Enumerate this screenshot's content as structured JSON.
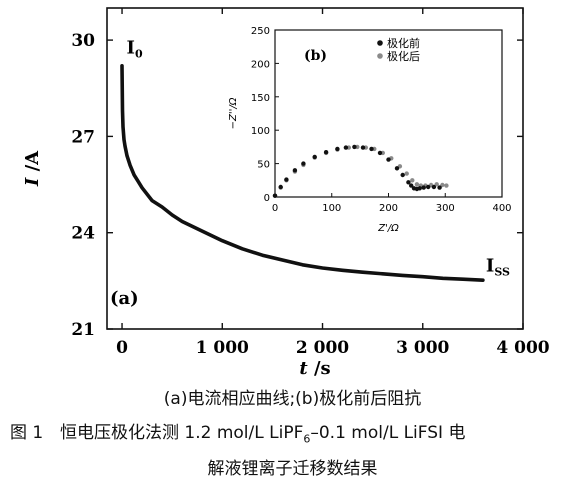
{
  "caption": {
    "subfig": "(a)电流相应曲线;(b)极化前后阻抗",
    "fig_num": "图 1",
    "line1_pre": "恒电压极化法测 1.2 mol/L LiPF",
    "line1_sub": "6",
    "line1_post": "–0.1 mol/L LiFSI 电",
    "line2": "解液锂离子迁移数结果"
  },
  "chart_data": [
    {
      "type": "line",
      "panel_label": "(a)",
      "xlabel": "t /s",
      "ylabel": "I /A",
      "xlim": [
        -150,
        4000
      ],
      "ylim": [
        21,
        31
      ],
      "xticks": [
        0,
        1000,
        2000,
        3000,
        4000
      ],
      "xtick_labels": [
        "0",
        "1 000",
        "2 000",
        "3 000",
        "4 000"
      ],
      "yticks": [
        21,
        24,
        27,
        30
      ],
      "ytick_labels": [
        "21",
        "24",
        "27",
        "30"
      ],
      "annotations": [
        {
          "text": "I",
          "sub": "0",
          "x": 5,
          "y": 29.4
        },
        {
          "text": "I",
          "sub": "SS",
          "x": 3590,
          "y": 22.6
        }
      ],
      "series": [
        {
          "color": "#111111",
          "x": [
            0,
            5,
            10,
            20,
            30,
            50,
            80,
            120,
            160,
            200,
            300,
            400,
            500,
            600,
            800,
            1000,
            1200,
            1400,
            1600,
            1800,
            2000,
            2200,
            2400,
            2600,
            2800,
            3000,
            3200,
            3400,
            3600
          ],
          "y": [
            29.2,
            27.8,
            27.3,
            26.9,
            26.7,
            26.4,
            26.1,
            25.8,
            25.6,
            25.4,
            25.0,
            24.8,
            24.55,
            24.35,
            24.05,
            23.75,
            23.5,
            23.3,
            23.15,
            23.0,
            22.9,
            22.83,
            22.77,
            22.72,
            22.67,
            22.63,
            22.58,
            22.55,
            22.52
          ]
        }
      ]
    },
    {
      "type": "scatter",
      "panel_label": "(b)",
      "xlabel": "Z'/Ω",
      "ylabel": "−Z''/Ω",
      "xlim": [
        0,
        400
      ],
      "ylim": [
        0,
        250
      ],
      "xticks": [
        0,
        100,
        200,
        300,
        400
      ],
      "yticks": [
        0,
        50,
        100,
        150,
        200,
        250
      ],
      "legend_position": "top-right",
      "series": [
        {
          "name": "极化前",
          "color": "#111111",
          "x": [
            0,
            10,
            20,
            35,
            50,
            70,
            90,
            110,
            125,
            140,
            155,
            170,
            185,
            200,
            215,
            225,
            235,
            240,
            245,
            250,
            255,
            262,
            270,
            280,
            290
          ],
          "y": [
            2,
            15,
            26,
            40,
            50,
            60,
            67,
            72,
            74,
            75,
            74,
            72,
            66,
            56,
            43,
            33,
            22,
            17,
            13,
            12,
            13,
            14,
            15,
            15,
            14
          ]
        },
        {
          "name": "极化后",
          "color": "#8a8a8a",
          "x": [
            0,
            10,
            20,
            35,
            50,
            70,
            90,
            110,
            130,
            145,
            160,
            175,
            190,
            205,
            220,
            232,
            242,
            250,
            257,
            265,
            275,
            285,
            295,
            302
          ],
          "y": [
            2,
            14,
            25,
            38,
            48,
            59,
            66,
            71,
            74,
            75,
            74,
            72,
            66,
            58,
            46,
            35,
            25,
            19,
            17,
            17,
            18,
            19,
            18,
            17
          ]
        }
      ]
    }
  ]
}
